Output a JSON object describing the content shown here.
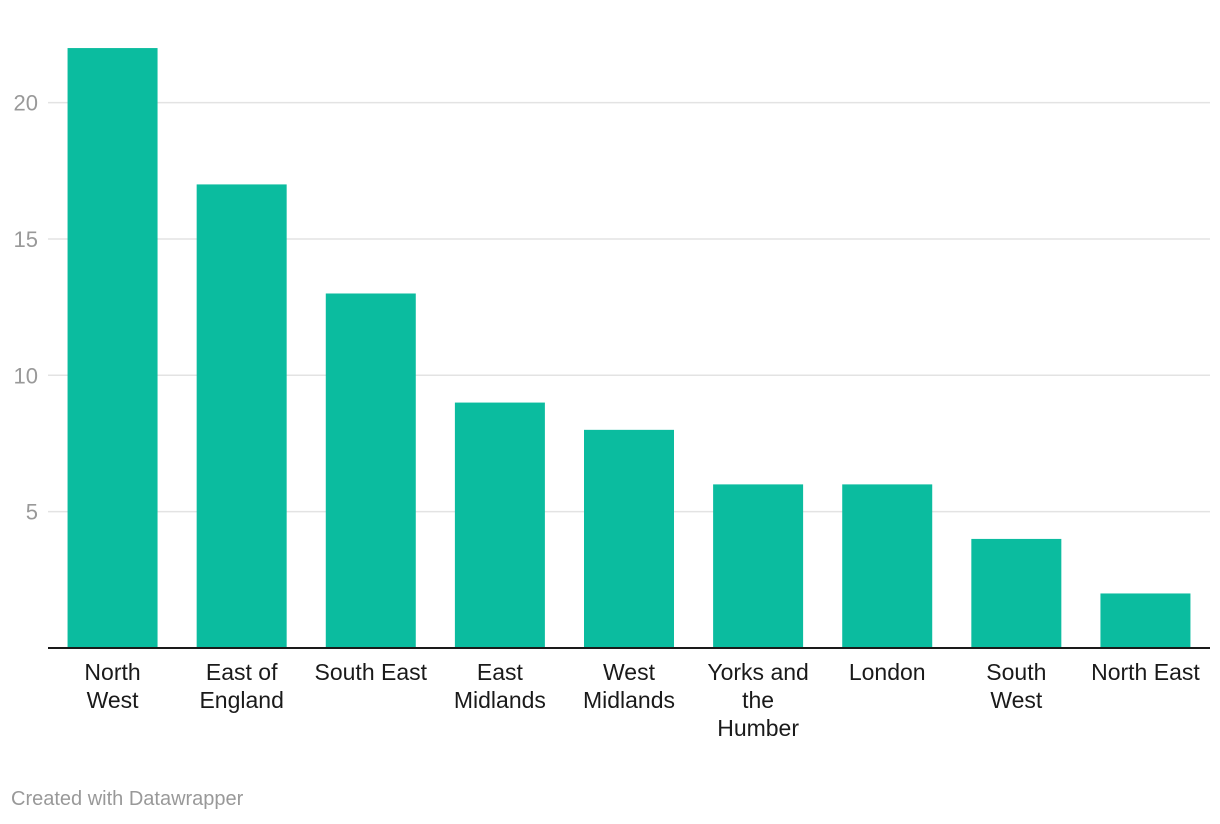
{
  "chart_data": {
    "type": "bar",
    "categories": [
      [
        "North",
        "West"
      ],
      [
        "East of",
        "England"
      ],
      [
        "South East"
      ],
      [
        "East",
        "Midlands"
      ],
      [
        "West",
        "Midlands"
      ],
      [
        "Yorks and",
        "the",
        "Humber"
      ],
      [
        "London"
      ],
      [
        "South",
        "West"
      ],
      [
        "North East"
      ]
    ],
    "values": [
      22,
      17,
      13,
      9,
      8,
      6,
      6,
      4,
      2
    ],
    "yticks": [
      5,
      10,
      15,
      20
    ],
    "ylim": [
      0,
      22
    ],
    "grid": true,
    "colors": {
      "bar": "#0bbc9f",
      "grid": "#e3e3e3",
      "axis": "#1a1a1a",
      "tick_text": "#999999",
      "label_text": "#1a1a1a"
    }
  },
  "footer": {
    "credit": "Created with Datawrapper"
  }
}
